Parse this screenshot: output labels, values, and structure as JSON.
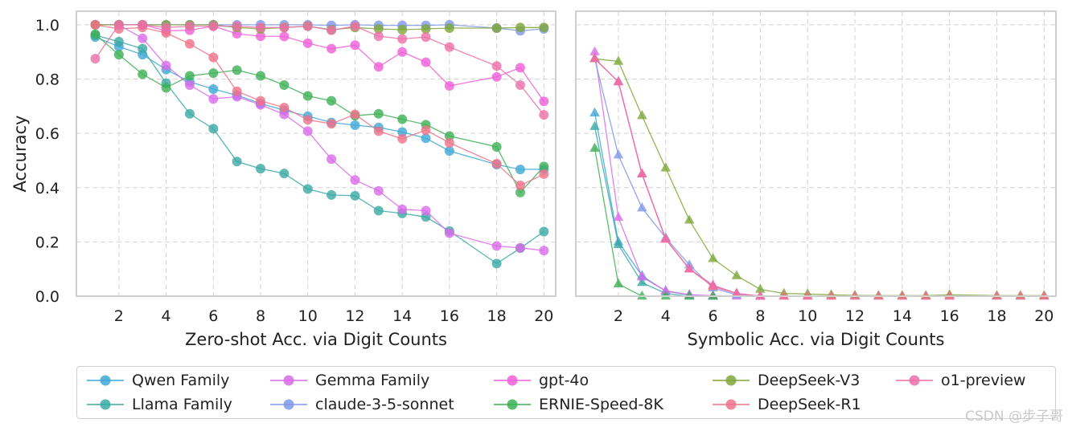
{
  "colors": {
    "Qwen Family": "#3ea7d6",
    "Llama Family": "#3aa9a4",
    "Gemma Family": "#d96bea",
    "claude-3-5-sonnet": "#8098ea",
    "gpt-4o": "#ef5fd8",
    "ERNIE-Speed-8K": "#3db055",
    "DeepSeek-V3": "#7ea73a",
    "DeepSeek-R1": "#f0728a",
    "o1-preview": "#ec6fa9"
  },
  "legend": [
    "Qwen Family",
    "Llama Family",
    "Gemma Family",
    "claude-3-5-sonnet",
    "gpt-4o",
    "ERNIE-Speed-8K",
    "DeepSeek-V3",
    "DeepSeek-R1",
    "o1-preview"
  ],
  "watermark": "CSDN @步子哥",
  "chart_data": [
    {
      "type": "line",
      "id": "zero-shot",
      "xlabel": "Zero-shot Acc. via Digit Counts",
      "ylabel": "Accuracy",
      "xlim": [
        0.2,
        20.5
      ],
      "ylim": [
        0,
        1.05
      ],
      "xticks": [
        2,
        4,
        6,
        8,
        10,
        12,
        14,
        16,
        18,
        20
      ],
      "yticks": [
        0.0,
        0.2,
        0.4,
        0.6,
        0.8,
        1.0
      ],
      "ytick_labels": [
        "0.0",
        "0.2",
        "0.4",
        "0.6",
        "0.8",
        "1.0"
      ],
      "grid": true,
      "marker": "circle",
      "series": [
        {
          "name": "Qwen Family",
          "x": [
            1,
            2,
            3,
            4,
            5,
            6,
            7,
            8,
            9,
            10,
            11,
            12,
            13,
            14,
            15,
            16,
            18,
            19,
            20
          ],
          "y": [
            0.955,
            0.92,
            0.89,
            0.835,
            0.79,
            0.763,
            0.74,
            0.71,
            0.685,
            0.663,
            0.64,
            0.63,
            0.622,
            0.605,
            0.582,
            0.535,
            0.485,
            0.467,
            0.468
          ]
        },
        {
          "name": "Llama Family",
          "x": [
            1,
            2,
            3,
            4,
            5,
            6,
            7,
            8,
            9,
            10,
            11,
            12,
            13,
            14,
            15,
            16,
            18,
            19,
            20
          ],
          "y": [
            0.962,
            0.938,
            0.912,
            0.785,
            0.672,
            0.617,
            0.496,
            0.47,
            0.452,
            0.395,
            0.373,
            0.37,
            0.315,
            0.305,
            0.292,
            0.24,
            0.12,
            0.177,
            0.238
          ]
        },
        {
          "name": "Gemma Family",
          "x": [
            1,
            2,
            3,
            4,
            5,
            6,
            7,
            8,
            9,
            10,
            11,
            12,
            13,
            14,
            15,
            16,
            18,
            19,
            20
          ],
          "y": [
            1.0,
            1.0,
            0.95,
            0.85,
            0.778,
            0.727,
            0.735,
            0.705,
            0.67,
            0.608,
            0.505,
            0.428,
            0.388,
            0.32,
            0.315,
            0.232,
            0.185,
            0.178,
            0.168
          ]
        },
        {
          "name": "claude-3-5-sonnet",
          "x": [
            1,
            2,
            3,
            4,
            5,
            6,
            7,
            8,
            9,
            10,
            11,
            12,
            13,
            14,
            15,
            16,
            18,
            19,
            20
          ],
          "y": [
            1.0,
            1.0,
            1.0,
            1.0,
            1.0,
            1.0,
            1.0,
            1.0,
            1.0,
            1.0,
            0.998,
            1.0,
            0.998,
            0.998,
            0.998,
            1.0,
            0.988,
            0.978,
            0.985
          ]
        },
        {
          "name": "gpt-4o",
          "x": [
            1,
            2,
            3,
            4,
            5,
            6,
            7,
            8,
            9,
            10,
            11,
            12,
            13,
            14,
            15,
            16,
            18,
            19,
            20
          ],
          "y": [
            1.0,
            1.0,
            1.0,
            0.978,
            0.98,
            0.995,
            0.967,
            0.958,
            0.957,
            0.932,
            0.912,
            0.925,
            0.845,
            0.9,
            0.862,
            0.775,
            0.808,
            0.842,
            0.718
          ]
        },
        {
          "name": "ERNIE-Speed-8K",
          "x": [
            1,
            2,
            3,
            4,
            5,
            6,
            7,
            8,
            9,
            10,
            11,
            12,
            13,
            14,
            15,
            16,
            18,
            19,
            20
          ],
          "y": [
            0.965,
            0.89,
            0.818,
            0.768,
            0.812,
            0.822,
            0.833,
            0.812,
            0.778,
            0.738,
            0.72,
            0.665,
            0.672,
            0.652,
            0.632,
            0.59,
            0.55,
            0.382,
            0.478
          ]
        },
        {
          "name": "DeepSeek-V3",
          "x": [
            1,
            2,
            3,
            4,
            5,
            6,
            7,
            8,
            9,
            10,
            11,
            12,
            13,
            14,
            15,
            16,
            18,
            19,
            20
          ],
          "y": [
            1.0,
            1.0,
            1.0,
            1.0,
            1.0,
            1.0,
            0.99,
            0.985,
            0.99,
            0.995,
            0.982,
            0.99,
            0.985,
            0.982,
            0.985,
            0.988,
            0.988,
            0.99,
            0.99
          ]
        },
        {
          "name": "DeepSeek-R1",
          "x": [
            1,
            2,
            3,
            4,
            5,
            6,
            7,
            8,
            9,
            10,
            11,
            12,
            13,
            14,
            15,
            16,
            18,
            19,
            20
          ],
          "y": [
            1.0,
            0.985,
            0.99,
            0.97,
            0.93,
            0.88,
            0.755,
            0.72,
            0.695,
            0.65,
            0.635,
            0.67,
            0.608,
            0.58,
            0.612,
            0.565,
            0.488,
            0.408,
            0.45
          ]
        },
        {
          "name": "o1-preview",
          "x": [
            1,
            2,
            3,
            4,
            5,
            6,
            7,
            8,
            9,
            10,
            11,
            12,
            13,
            14,
            15,
            16,
            18,
            19,
            20
          ],
          "y": [
            0.875,
            1.0,
            1.0,
            0.99,
            0.995,
            0.995,
            0.995,
            0.99,
            0.99,
            0.995,
            0.98,
            0.995,
            0.958,
            0.948,
            0.955,
            0.918,
            0.848,
            0.778,
            0.668
          ]
        }
      ]
    },
    {
      "type": "line",
      "id": "symbolic",
      "xlabel": "Symbolic Acc. via Digit Counts",
      "ylabel": "",
      "xlim": [
        0.2,
        20.5
      ],
      "ylim": [
        0,
        1.05
      ],
      "xticks": [
        2,
        4,
        6,
        8,
        10,
        12,
        14,
        16,
        18,
        20
      ],
      "yticks": [
        0.0,
        0.2,
        0.4,
        0.6,
        0.8,
        1.0
      ],
      "grid": true,
      "marker": "triangle",
      "series": [
        {
          "name": "Qwen Family",
          "x": [
            1,
            2,
            3,
            4,
            5,
            6
          ],
          "y": [
            0.675,
            0.2,
            0.075,
            0.018,
            0.005,
            0.0
          ]
        },
        {
          "name": "Llama Family",
          "x": [
            1,
            2,
            3,
            4,
            5,
            6
          ],
          "y": [
            0.625,
            0.19,
            0.05,
            0.01,
            0.0,
            0.0
          ]
        },
        {
          "name": "Gemma Family",
          "x": [
            1,
            2,
            3,
            4,
            5,
            6,
            7
          ],
          "y": [
            0.9,
            0.29,
            0.07,
            0.02,
            0.005,
            0.002,
            0.0
          ]
        },
        {
          "name": "claude-3-5-sonnet",
          "x": [
            1,
            2,
            3,
            4,
            5,
            6,
            7,
            8
          ],
          "y": [
            0.875,
            0.52,
            0.325,
            0.215,
            0.115,
            0.03,
            0.005,
            0.0
          ]
        },
        {
          "name": "gpt-4o",
          "x": [
            1,
            2,
            3,
            4,
            5,
            6,
            7,
            8,
            9,
            10,
            11,
            12,
            13,
            14,
            15,
            16,
            18,
            19,
            20
          ],
          "y": [
            0.875,
            0.79,
            0.45,
            0.21,
            0.1,
            0.04,
            0.01,
            0.0,
            0.0,
            0.0,
            0.0,
            0.0,
            0.0,
            0.0,
            0.0,
            0.0,
            0.0,
            0.0,
            0.0
          ]
        },
        {
          "name": "ERNIE-Speed-8K",
          "x": [
            1,
            2,
            3,
            4,
            5,
            6
          ],
          "y": [
            0.545,
            0.045,
            0.0,
            0.0,
            0.0,
            0.0
          ]
        },
        {
          "name": "DeepSeek-V3",
          "x": [
            1,
            2,
            3,
            4,
            5,
            6,
            7,
            8,
            9,
            10,
            11,
            12,
            13,
            14,
            15,
            16,
            18,
            19,
            20
          ],
          "y": [
            0.875,
            0.865,
            0.665,
            0.472,
            0.28,
            0.138,
            0.075,
            0.025,
            0.01,
            0.008,
            0.005,
            0.003,
            0.002,
            0.002,
            0.002,
            0.005,
            0.002,
            0.002,
            0.002
          ]
        },
        {
          "name": "DeepSeek-R1",
          "x": [
            1,
            2,
            3,
            4,
            5,
            6,
            7,
            8,
            9,
            10,
            11,
            12,
            13,
            14,
            15,
            16,
            18,
            19,
            20
          ],
          "y": [
            0.875,
            0.79,
            0.45,
            0.21,
            0.1,
            0.035,
            0.01,
            0.0,
            0.0,
            0.0,
            0.0,
            0.0,
            0.0,
            0.0,
            0.0,
            0.0,
            0.0,
            0.0,
            0.0
          ]
        },
        {
          "name": "o1-preview",
          "x": [
            1,
            2,
            3,
            4,
            5,
            6,
            7,
            8
          ],
          "y": [
            0.875,
            0.79,
            0.45,
            0.21,
            0.1,
            0.04,
            0.01,
            0.0
          ]
        }
      ]
    }
  ]
}
